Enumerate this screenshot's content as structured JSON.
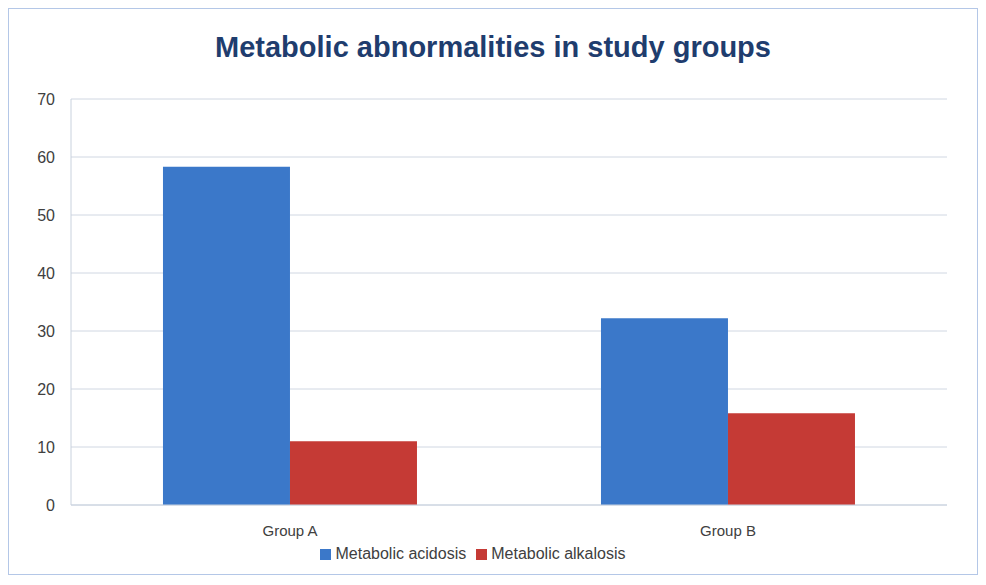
{
  "chart_data": {
    "type": "bar",
    "title": "Metabolic abnormalities in study groups",
    "categories": [
      "Group A",
      "Group B"
    ],
    "series": [
      {
        "name": "Metabolic acidosis",
        "color": "#3b78c9",
        "values": [
          58.3,
          32.2
        ]
      },
      {
        "name": "Metabolic alkalosis",
        "color": "#c53a35",
        "values": [
          11,
          15.8
        ]
      }
    ],
    "ylim": [
      0,
      70
    ],
    "yticks": [
      0,
      10,
      20,
      30,
      40,
      50,
      60,
      70
    ],
    "grid": true,
    "legend": "bottom"
  }
}
